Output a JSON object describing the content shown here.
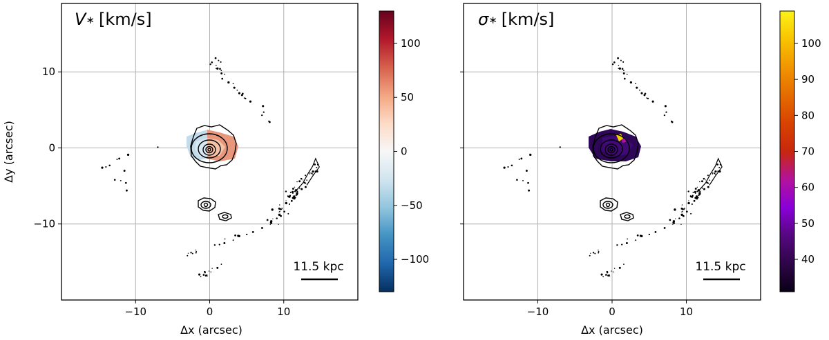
{
  "chart_data": [
    {
      "type": "heatmap",
      "title": "V∗ [km/s]",
      "title_symbol": "V",
      "title_sub": "∗",
      "title_unit": "[km/s]",
      "xlabel": "Δx (arcsec)",
      "ylabel": "Δy (arcsec)",
      "xlim": [
        -20,
        20
      ],
      "ylim": [
        -20,
        19
      ],
      "xticks": [
        -10,
        0,
        10
      ],
      "yticks": [
        -10,
        0,
        10
      ],
      "xtick_labels": [
        "−10",
        "0",
        "10"
      ],
      "ytick_labels": [
        "−10",
        "0",
        "10"
      ],
      "grid": true,
      "colormap": "RdBu_r",
      "colors": [
        "#053061",
        "#2166ac",
        "#4393c3",
        "#92c5de",
        "#d1e5f0",
        "#f7f7f7",
        "#fddbc7",
        "#f4a582",
        "#d6604d",
        "#b2182b",
        "#67001f"
      ],
      "colorbar_range": [
        -130,
        130
      ],
      "colorbar_ticks": [
        -100,
        -50,
        0,
        50,
        100
      ],
      "colorbar_tick_labels": [
        "−100",
        "−50",
        "0",
        "50",
        "100"
      ],
      "scalebar_label": "11.5 kpc",
      "scalebar_length_arcsec": 5
    },
    {
      "type": "heatmap",
      "title": "σ∗ [km/s]",
      "title_symbol": "σ",
      "title_sub": "∗",
      "title_unit": "[km/s]",
      "xlabel": "Δx (arcsec)",
      "ylabel": "",
      "xlim": [
        -20,
        20
      ],
      "ylim": [
        -20,
        19
      ],
      "xticks": [
        -10,
        0,
        10
      ],
      "yticks": [
        -10,
        0,
        10
      ],
      "xtick_labels": [
        "−10",
        "0",
        "10"
      ],
      "ytick_labels": [
        "",
        "",
        ""
      ],
      "grid": true,
      "colormap": "gnuplot",
      "colors": [
        "#0a0016",
        "#2e0548",
        "#55087f",
        "#8a00d8",
        "#b3139b",
        "#c8270e",
        "#d84300",
        "#e56b00",
        "#f19500",
        "#f8c400",
        "#fcf21a"
      ],
      "colorbar_range": [
        31,
        109
      ],
      "colorbar_ticks": [
        40,
        50,
        60,
        70,
        80,
        90,
        100
      ],
      "colorbar_tick_labels": [
        "40",
        "50",
        "60",
        "70",
        "80",
        "90",
        "100"
      ],
      "scalebar_label": "11.5 kpc",
      "scalebar_length_arcsec": 5
    }
  ]
}
